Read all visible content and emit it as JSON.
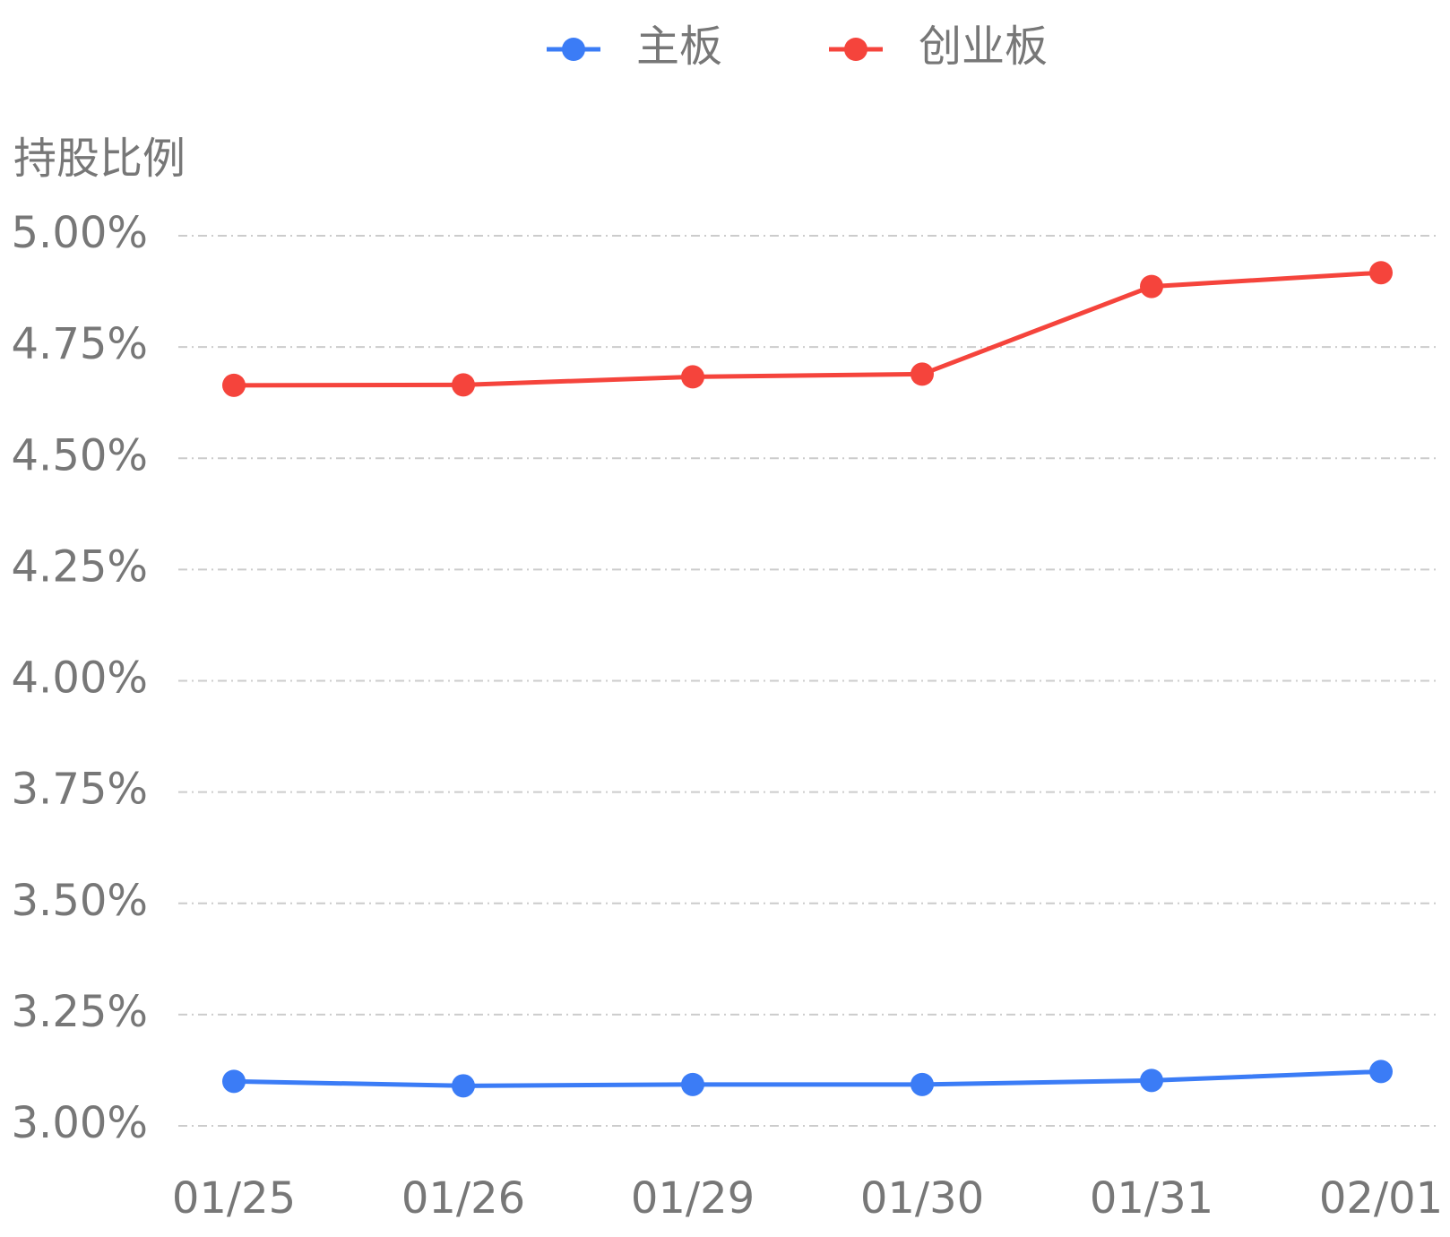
{
  "chart_data": {
    "type": "line",
    "y_axis_label": "持股比例",
    "categories": [
      "01/25",
      "01/26",
      "01/29",
      "01/30",
      "01/31",
      "02/01"
    ],
    "series": [
      {
        "name": "主板",
        "color": "#3b7cf6",
        "values": [
          3.1,
          3.09,
          3.093,
          3.093,
          3.102,
          3.122
        ]
      },
      {
        "name": "创业板",
        "color": "#f5443c",
        "values": [
          4.664,
          4.665,
          4.683,
          4.689,
          4.886,
          4.917
        ]
      }
    ],
    "ylim": [
      3.0,
      5.0
    ],
    "yticks": [
      {
        "value": 3.0,
        "label": "3.00%"
      },
      {
        "value": 3.25,
        "label": "3.25%"
      },
      {
        "value": 3.5,
        "label": "3.50%"
      },
      {
        "value": 3.75,
        "label": "3.75%"
      },
      {
        "value": 4.0,
        "label": "4.00%"
      },
      {
        "value": 4.25,
        "label": "4.25%"
      },
      {
        "value": 4.5,
        "label": "4.50%"
      },
      {
        "value": 4.75,
        "label": "4.75%"
      },
      {
        "value": 5.0,
        "label": "5.00%"
      }
    ],
    "grid": true,
    "legend": "top"
  }
}
